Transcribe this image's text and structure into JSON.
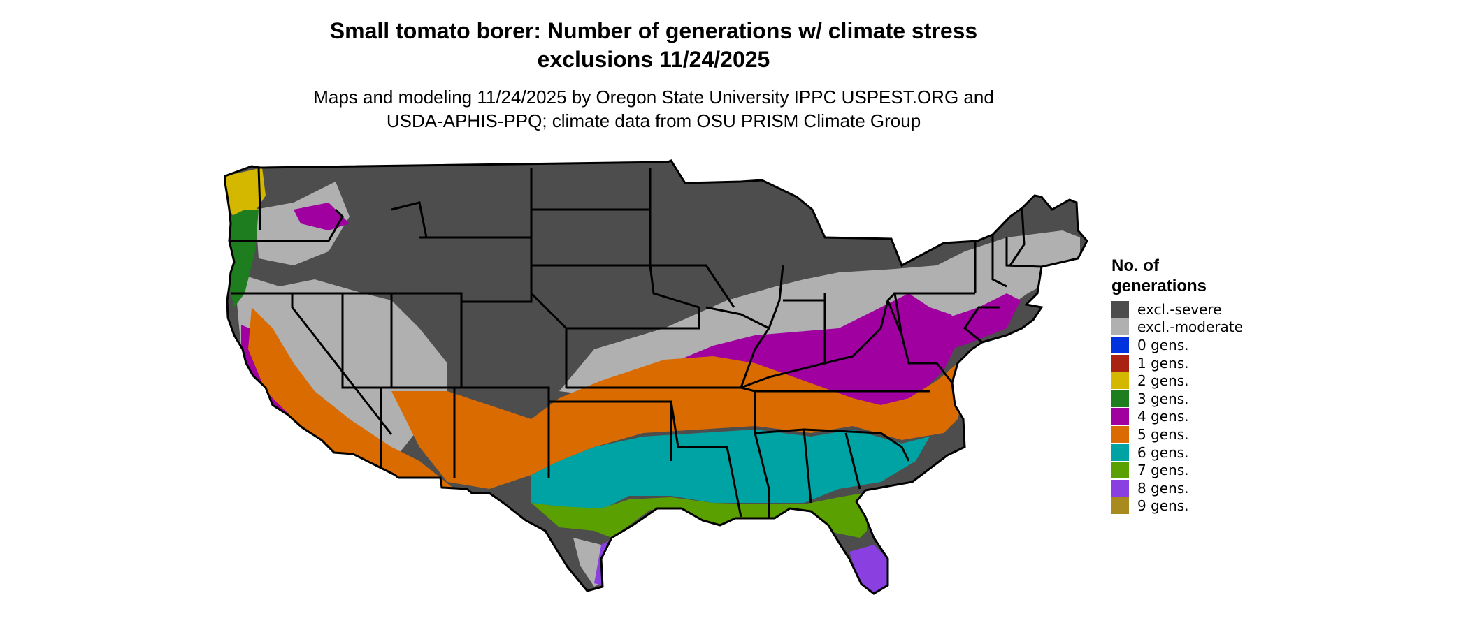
{
  "title_line1": "Small tomato borer: Number of generations w/ climate stress",
  "title_line2": "exclusions 11/24/2025",
  "subtitle_line1": "Maps and modeling 11/24/2025 by Oregon State University IPPC USPEST.ORG and",
  "subtitle_line2": "USDA-APHIS-PPQ; climate data from OSU PRISM Climate Group",
  "legend": {
    "title_line1": "No. of",
    "title_line2": "generations",
    "items": [
      {
        "label": "excl.-severe",
        "color": "#4d4d4d"
      },
      {
        "label": "excl.-moderate",
        "color": "#b0b0b0"
      },
      {
        "label": "0 gens.",
        "color": "#0033dd"
      },
      {
        "label": "1 gens.",
        "color": "#aa2211"
      },
      {
        "label": "2 gens.",
        "color": "#d4b800"
      },
      {
        "label": "3 gens.",
        "color": "#1e7d1e"
      },
      {
        "label": "4 gens.",
        "color": "#a000a0"
      },
      {
        "label": "5 gens.",
        "color": "#d96b00"
      },
      {
        "label": "6 gens.",
        "color": "#00a3a3"
      },
      {
        "label": "7 gens.",
        "color": "#5aa000"
      },
      {
        "label": "8 gens.",
        "color": "#8a3fe0"
      },
      {
        "label": "9 gens.",
        "color": "#a88a1e"
      }
    ]
  }
}
